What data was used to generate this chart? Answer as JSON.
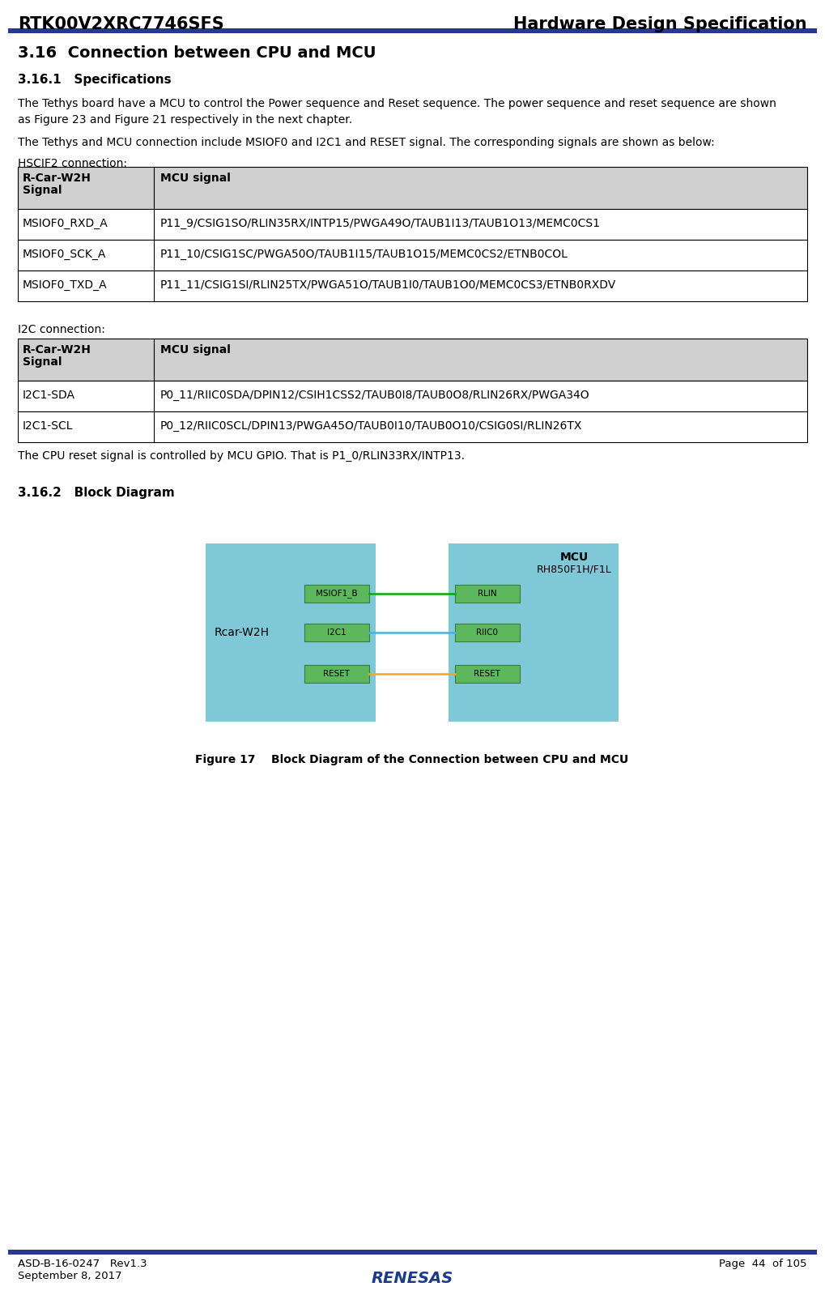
{
  "header_left": "RTK00V2XRC7746SFS",
  "header_right": "Hardware Design Specification",
  "header_line_color": "#2a3990",
  "footer_left_line1": "ASD-B-16-0247   Rev1.3",
  "footer_left_line2": "September 8, 2017",
  "footer_right": "Page  44  of 105",
  "section_title": "3.16  Connection between CPU and MCU",
  "subsection1": "3.16.1   Specifications",
  "body_text1": "The Tethys board have a MCU to control the Power sequence and Reset sequence. The power sequence and reset sequence are shown",
  "body_text2": "as Figure 23 and Figure 21 respectively in the next chapter.",
  "body_text3": "The Tethys and MCU connection include MSIOF0 and I2C1 and RESET signal. The corresponding signals are shown as below:",
  "hscif2_label": "HSCIF2 connection:",
  "table1_rows": [
    [
      "MSIOF0_RXD_A",
      "P11_9/CSIG1SO/RLIN35RX/INTP15/PWGA49O/TAUB1I13/TAUB1O13/MEMC0CS1"
    ],
    [
      "MSIOF0_SCK_A",
      "P11_10/CSIG1SC/PWGA50O/TAUB1I15/TAUB1O15/MEMC0CS2/ETNB0COL"
    ],
    [
      "MSIOF0_TXD_A",
      "P11_11/CSIG1SI/RLIN25TX/PWGA51O/TAUB1I0/TAUB1O0/MEMC0CS3/ETNB0RXDV"
    ]
  ],
  "i2c_label": "I2C connection:",
  "table2_rows": [
    [
      "I2C1-SDA",
      "P0_11/RIIC0SDA/DPIN12/CSIH1CSS2/TAUB0I8/TAUB0O8/RLIN26RX/PWGA34O"
    ],
    [
      "I2C1-SCL",
      "P0_12/RIIC0SCL/DPIN13/PWGA45O/TAUB0I10/TAUB0O10/CSIG0SI/RLIN26TX"
    ]
  ],
  "reset_text": "The CPU reset signal is controlled by MCU GPIO. That is P1_0/RLIN33RX/INTP13.",
  "subsection2": "3.16.2   Block Diagram",
  "figure_caption": "Figure 17    Block Diagram of the Connection between CPU and MCU",
  "table_header_bg": "#d0d0d0",
  "table_bg": "#ffffff",
  "table_border": "#000000",
  "block_bg": "#7ec8d8",
  "box_color": "#5db85d",
  "line_msiof_color": "#00aa00",
  "line_i2c_color": "#4ab0e0",
  "line_reset_color": "#f5a623",
  "rcar_label": "Rcar-W2H",
  "msiof_left_label": "MSIOF1_B",
  "msiof_right_label": "RLIN",
  "i2c_left_label": "I2C1",
  "i2c_right_label": "RIIC0",
  "reset_left_label": "RESET",
  "reset_right_label": "RESET"
}
